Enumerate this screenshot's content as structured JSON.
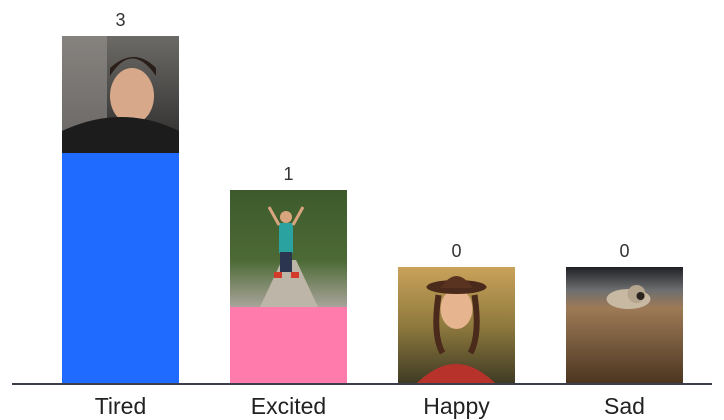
{
  "chart_data": {
    "type": "bar",
    "categories": [
      "Tired",
      "Excited",
      "Happy",
      "Sad"
    ],
    "values": [
      3,
      1,
      0,
      0
    ],
    "value_labels": [
      "3",
      "1",
      "0",
      "0"
    ],
    "bar_colors": [
      "#1f6bff",
      "#ff7bac",
      "",
      ""
    ],
    "category_images": [
      "photo of a tired man rubbing his face",
      "photo of a person jumping on a forest path",
      "photo of a smiling woman in a hat in a field",
      "photo of a sad dog lying on a floor"
    ],
    "title": "",
    "xlabel": "",
    "ylabel": "",
    "ylim": [
      0,
      3
    ],
    "grid": false,
    "legend": "none"
  },
  "colors": {
    "axis": "#3a3f4b",
    "text": "#333333"
  }
}
